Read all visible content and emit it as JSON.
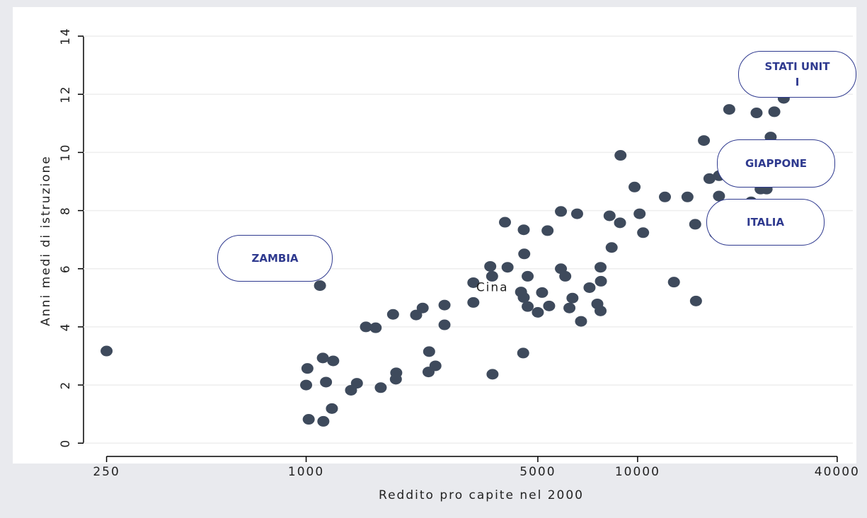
{
  "chart_data": {
    "type": "scatter",
    "x_label": "Reddito pro capite nel 2000",
    "y_label": "Anni medi di istruzione",
    "xscale": "log",
    "xlim": [
      213,
      44600
    ],
    "xticks": [
      250,
      1000,
      5000,
      10000,
      40000
    ],
    "ylim": [
      -0.7,
      15
    ],
    "yticks": [
      0,
      2,
      4,
      6,
      8,
      10,
      12,
      14
    ],
    "grid": true,
    "color": "#3e4a5c",
    "x": [
      250,
      1000,
      1009,
      1018,
      1123,
      1148,
      1127,
      1207,
      1196,
      1101,
      1366,
      1423,
      1515,
      1621,
      1679,
      1870,
      1865,
      1829,
      2147,
      2247,
      2350,
      2340,
      2455,
      2615,
      2615,
      3195,
      3195,
      3593,
      3640,
      3650,
      4052,
      3980,
      4534,
      4550,
      4450,
      4534,
      4517,
      4659,
      4659,
      5000,
      5150,
      5409,
      5350,
      5870,
      5870,
      6050,
      6228,
      6360,
      6570,
      6750,
      7160,
      7560,
      7730,
      7750,
      7730,
      8230,
      8350,
      8850,
      8880,
      9790,
      10140,
      10390,
      12090,
      12870,
      14140,
      14920,
      15000,
      15850,
      16470,
      17600,
      17600,
      17140,
      18900,
      22850,
      25850,
      25200,
      23500,
      24500,
      27600,
      22000
    ],
    "values": [
      3.17,
      2.0,
      2.57,
      0.82,
      2.93,
      2.1,
      0.75,
      2.83,
      1.19,
      5.42,
      1.82,
      2.06,
      4.0,
      3.97,
      1.91,
      2.42,
      2.2,
      4.43,
      4.41,
      4.65,
      3.15,
      2.45,
      2.66,
      4.75,
      4.07,
      4.84,
      5.52,
      6.08,
      5.74,
      2.37,
      6.05,
      7.6,
      7.34,
      6.51,
      5.2,
      5.01,
      3.1,
      5.74,
      4.7,
      4.5,
      5.18,
      4.72,
      7.31,
      7.97,
      6.0,
      5.74,
      4.65,
      4.99,
      7.89,
      4.19,
      5.35,
      4.79,
      6.05,
      5.57,
      4.55,
      7.82,
      6.73,
      7.58,
      9.9,
      8.81,
      7.89,
      7.24,
      8.47,
      5.54,
      8.47,
      7.53,
      4.89,
      10.41,
      9.1,
      8.5,
      9.2,
      7.22,
      11.48,
      11.36,
      11.4,
      10.53,
      8.74,
      8.74,
      11.86,
      8.3
    ],
    "point_label": "Cina",
    "annotations": [
      "ZAMBIA",
      "STATI UNITI",
      "GIAPPONE",
      "ITALIA"
    ]
  }
}
